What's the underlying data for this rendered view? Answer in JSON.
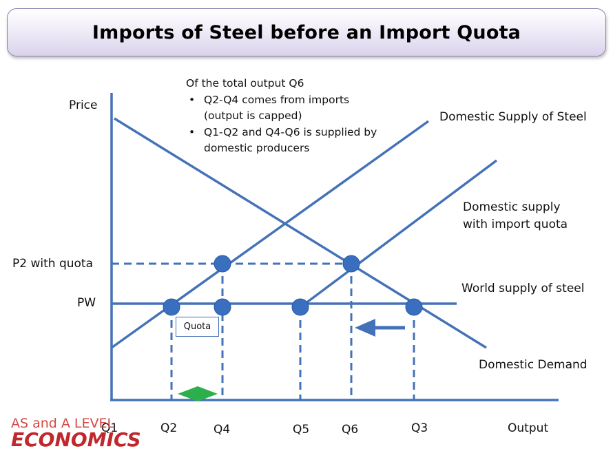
{
  "title": "Imports of Steel before an Import Quota",
  "note": {
    "heading": "Of the total output Q6",
    "bullets": [
      "Q2-Q4 comes from imports (output is capped)",
      "Q1-Q2 and Q4-Q6 is supplied by domestic producers"
    ],
    "bullet_lines": [
      [
        "Q2-Q4 comes from imports",
        "(output is capped)"
      ],
      [
        "Q1-Q2 and Q4-Q6 is supplied by",
        "domestic producers"
      ]
    ]
  },
  "axes": {
    "y_label": "Price",
    "x_label": "Output"
  },
  "price_labels": {
    "p2": "P2 with quota",
    "pw": "PW"
  },
  "curve_labels": {
    "domestic_supply": "Domestic Supply of Steel",
    "supply_with_quota_line1": "Domestic supply",
    "supply_with_quota_line2": "with import quota",
    "world_supply": "World supply of steel",
    "domestic_demand": "Domestic Demand"
  },
  "quantity_labels": [
    "Q1",
    "Q2",
    "Q4",
    "Q5",
    "Q6",
    "Q3"
  ],
  "quota_label": "Quota",
  "logo": {
    "line1": "AS and A LEVEL",
    "line2": "ECONOMICS"
  },
  "colors": {
    "line": "#4472b8",
    "dot": "#3a6fc0",
    "arrow": "#4472b8",
    "quota_arrow": "#2db04b",
    "logo": "#c0282d"
  },
  "icons": [
    "left-arrow-icon",
    "double-headed-arrow-icon"
  ]
}
